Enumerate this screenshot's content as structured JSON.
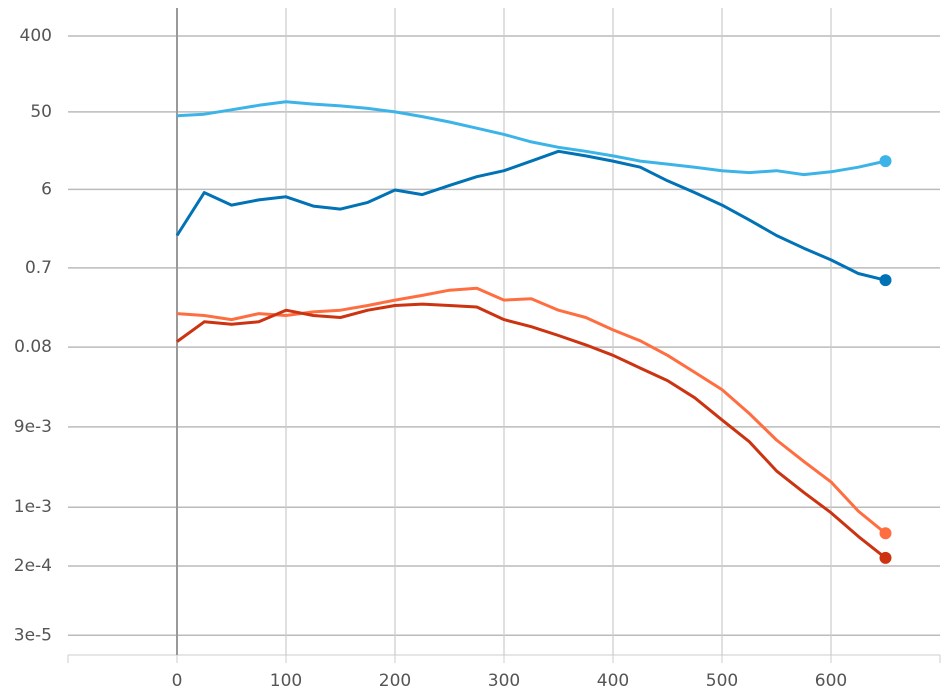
{
  "chart_data": {
    "type": "line",
    "log_scale": true,
    "grid": true,
    "x": [
      0,
      25,
      50,
      75,
      100,
      125,
      150,
      175,
      200,
      225,
      250,
      275,
      300,
      325,
      350,
      375,
      400,
      425,
      450,
      475,
      500,
      525,
      550,
      575,
      600,
      625,
      650
    ],
    "series": [
      {
        "color": "#3cb4e8",
        "values": [
          45,
          47,
          53,
          60,
          66,
          62,
          59,
          55,
          50,
          44,
          38,
          32,
          27,
          22,
          19,
          17,
          15,
          13,
          12,
          11,
          10,
          9.5,
          10,
          9,
          9.7,
          11,
          13
        ]
      },
      {
        "color": "#0072b5",
        "values": [
          1.7,
          5.5,
          3.9,
          4.5,
          4.9,
          3.8,
          3.5,
          4.2,
          5.9,
          5.2,
          6.7,
          8.5,
          10,
          13,
          17,
          15,
          13,
          11,
          7.6,
          5.5,
          3.9,
          2.6,
          1.7,
          1.2,
          0.87,
          0.6,
          0.5
        ]
      },
      {
        "color": "#ff6e40",
        "values": [
          0.2,
          0.19,
          0.17,
          0.2,
          0.19,
          0.21,
          0.22,
          0.25,
          0.29,
          0.33,
          0.38,
          0.4,
          0.29,
          0.3,
          0.22,
          0.18,
          0.128,
          0.095,
          0.064,
          0.04,
          0.025,
          0.013,
          0.0063,
          0.0035,
          0.002,
          0.0009,
          0.00049
        ]
      },
      {
        "color": "#cc3311",
        "values": [
          0.093,
          0.16,
          0.15,
          0.16,
          0.22,
          0.19,
          0.18,
          0.22,
          0.25,
          0.26,
          0.25,
          0.24,
          0.17,
          0.14,
          0.11,
          0.085,
          0.064,
          0.045,
          0.032,
          0.02,
          0.0109,
          0.006,
          0.0027,
          0.0015,
          0.00086,
          0.00045,
          0.00025
        ]
      }
    ],
    "xlim": [
      -100,
      700
    ],
    "xticks": [
      0,
      100,
      200,
      300,
      400,
      500,
      600
    ],
    "ylim": [
      1.75e-05,
      860
    ],
    "yticks": [
      400,
      50,
      6,
      0.7,
      0.08,
      {
        "value": 0.009,
        "label": "9e-3"
      },
      {
        "value": 0.001,
        "label": "1e-3"
      },
      {
        "value": 0.0002,
        "label": "2e-4"
      },
      {
        "value": 3e-05,
        "label": "3e-5"
      }
    ]
  }
}
